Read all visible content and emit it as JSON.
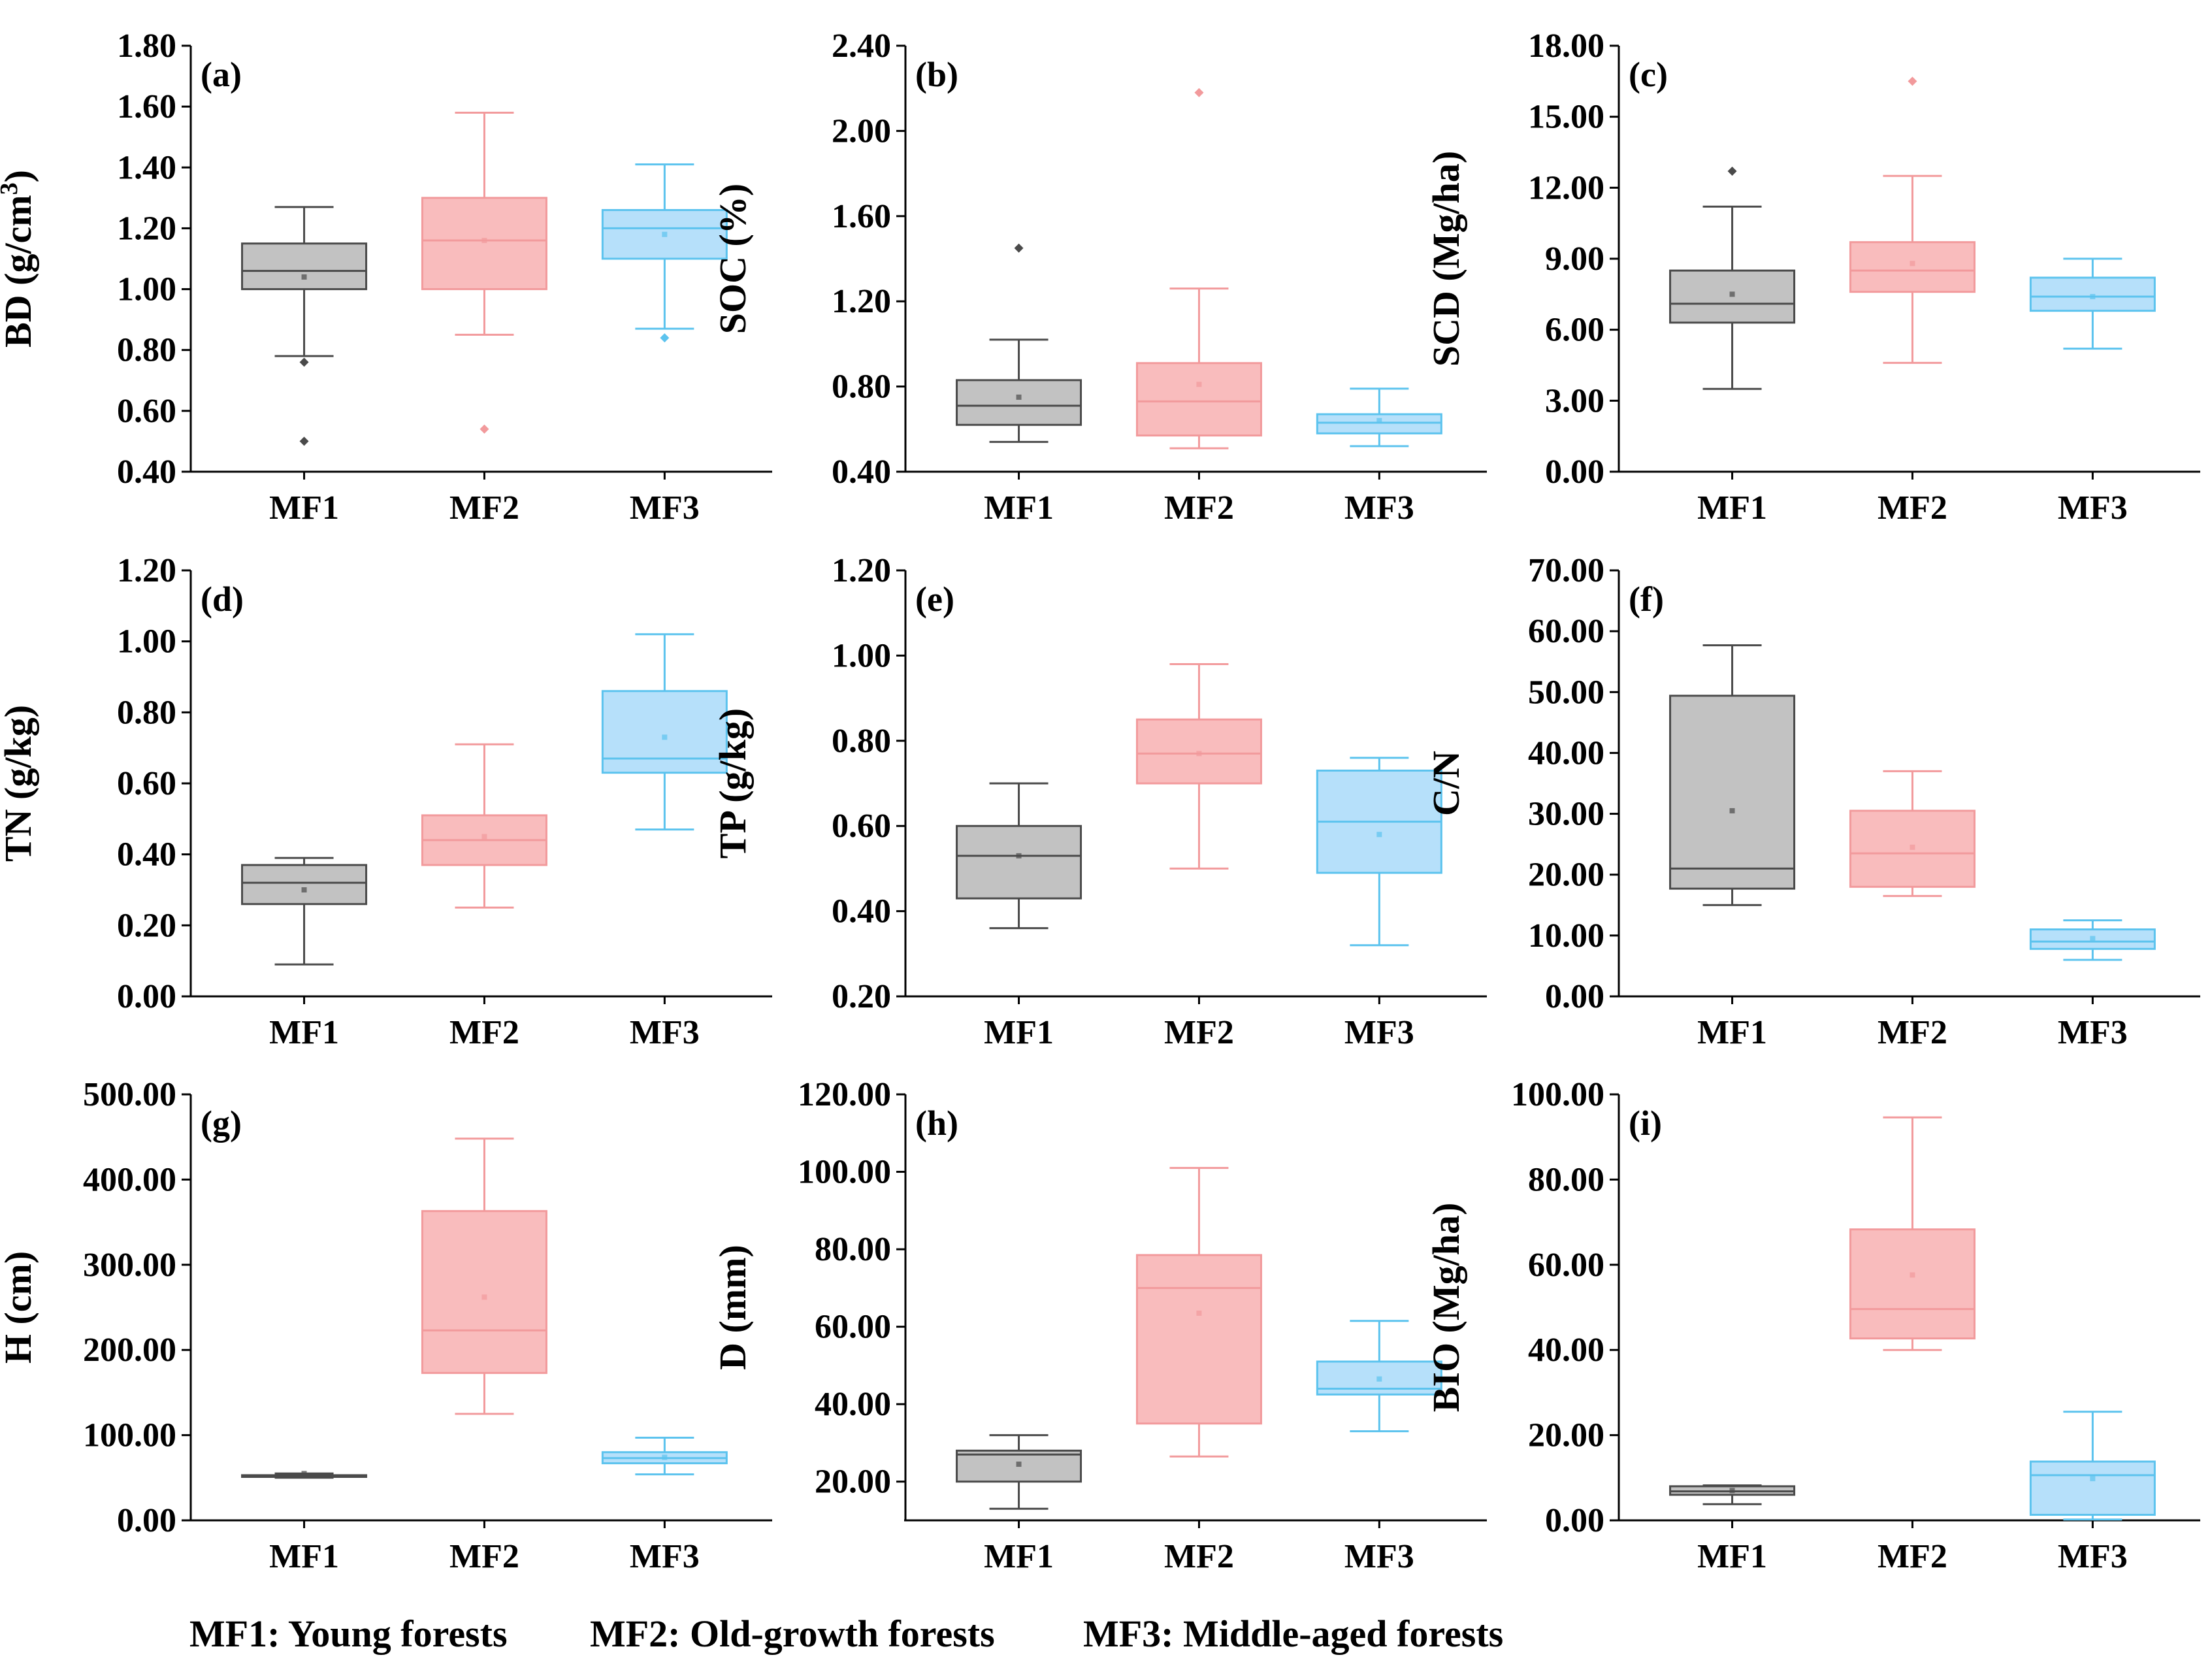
{
  "colors": {
    "MF1": {
      "fill": "#c2c2c2",
      "stroke": "#4a4a4a"
    },
    "MF2": {
      "fill": "#f9bcbd",
      "stroke": "#f29a9c"
    },
    "MF3": {
      "fill": "#b6e0fa",
      "stroke": "#5cc3ee"
    },
    "axis": "#000000"
  },
  "legend": [
    "MF1: Young forests",
    "MF2: Old-growth forests",
    "MF3: Middle-aged forests"
  ],
  "chart_data": [
    {
      "type": "box",
      "panel_label": "(a)",
      "ylabel": "BD (g/cm",
      "ylabel_sup": "3",
      "ylabel_end": ")",
      "ylim": [
        0.4,
        1.8
      ],
      "yticks": [
        "0.40",
        "0.60",
        "0.80",
        "1.00",
        "1.20",
        "1.40",
        "1.60",
        "1.80"
      ],
      "categories": [
        "MF1",
        "MF2",
        "MF3"
      ],
      "boxes": [
        {
          "name": "MF1",
          "min": 0.78,
          "q1": 1.0,
          "median": 1.06,
          "q3": 1.15,
          "max": 1.27,
          "mean": 1.04,
          "outliers": [
            0.76,
            0.5
          ]
        },
        {
          "name": "MF2",
          "min": 0.85,
          "q1": 1.0,
          "median": 1.16,
          "q3": 1.3,
          "max": 1.58,
          "mean": 1.16,
          "outliers": [
            0.54
          ]
        },
        {
          "name": "MF3",
          "min": 0.87,
          "q1": 1.1,
          "median": 1.2,
          "q3": 1.26,
          "max": 1.41,
          "mean": 1.18,
          "outliers": [
            0.84
          ]
        }
      ]
    },
    {
      "type": "box",
      "panel_label": "(b)",
      "ylabel": "SOC (%)",
      "ylabel_sup": "",
      "ylabel_end": "",
      "ylim": [
        0.4,
        2.4
      ],
      "yticks": [
        "0.40",
        "0.80",
        "1.20",
        "1.60",
        "2.00",
        "2.40"
      ],
      "categories": [
        "MF1",
        "MF2",
        "MF3"
      ],
      "boxes": [
        {
          "name": "MF1",
          "min": 0.54,
          "q1": 0.62,
          "median": 0.71,
          "q3": 0.83,
          "max": 1.02,
          "mean": 0.75,
          "outliers": [
            1.45
          ]
        },
        {
          "name": "MF2",
          "min": 0.51,
          "q1": 0.57,
          "median": 0.73,
          "q3": 0.91,
          "max": 1.26,
          "mean": 0.81,
          "outliers": [
            2.18
          ]
        },
        {
          "name": "MF3",
          "min": 0.52,
          "q1": 0.58,
          "median": 0.63,
          "q3": 0.67,
          "max": 0.79,
          "mean": 0.64,
          "outliers": []
        }
      ]
    },
    {
      "type": "box",
      "panel_label": "(c)",
      "ylabel": "SCD (Mg/ha)",
      "ylabel_sup": "",
      "ylabel_end": "",
      "ylim": [
        0,
        18
      ],
      "yticks": [
        "0.00",
        "3.00",
        "6.00",
        "9.00",
        "12.00",
        "15.00",
        "18.00"
      ],
      "categories": [
        "MF1",
        "MF2",
        "MF3"
      ],
      "boxes": [
        {
          "name": "MF1",
          "min": 3.5,
          "q1": 6.3,
          "median": 7.1,
          "q3": 8.5,
          "max": 11.2,
          "mean": 7.5,
          "outliers": [
            12.7
          ]
        },
        {
          "name": "MF2",
          "min": 4.6,
          "q1": 7.6,
          "median": 8.5,
          "q3": 9.7,
          "max": 12.5,
          "mean": 8.8,
          "outliers": [
            16.5
          ]
        },
        {
          "name": "MF3",
          "min": 5.2,
          "q1": 6.8,
          "median": 7.4,
          "q3": 8.2,
          "max": 9.0,
          "mean": 7.4,
          "outliers": []
        }
      ]
    },
    {
      "type": "box",
      "panel_label": "(d)",
      "ylabel": "TN (g/kg)",
      "ylabel_sup": "",
      "ylabel_end": "",
      "ylim": [
        0,
        1.2
      ],
      "yticks": [
        "0.00",
        "0.20",
        "0.40",
        "0.60",
        "0.80",
        "1.00",
        "1.20"
      ],
      "categories": [
        "MF1",
        "MF2",
        "MF3"
      ],
      "boxes": [
        {
          "name": "MF1",
          "min": 0.09,
          "q1": 0.26,
          "median": 0.32,
          "q3": 0.37,
          "max": 0.39,
          "mean": 0.3,
          "outliers": []
        },
        {
          "name": "MF2",
          "min": 0.25,
          "q1": 0.37,
          "median": 0.44,
          "q3": 0.51,
          "max": 0.71,
          "mean": 0.45,
          "outliers": []
        },
        {
          "name": "MF3",
          "min": 0.47,
          "q1": 0.63,
          "median": 0.67,
          "q3": 0.86,
          "max": 1.02,
          "mean": 0.73,
          "outliers": []
        }
      ]
    },
    {
      "type": "box",
      "panel_label": "(e)",
      "ylabel": "TP (g/kg)",
      "ylabel_sup": "",
      "ylabel_end": "",
      "ylim": [
        0.2,
        1.2
      ],
      "yticks": [
        "0.20",
        "0.40",
        "0.60",
        "0.80",
        "1.00",
        "1.20"
      ],
      "categories": [
        "MF1",
        "MF2",
        "MF3"
      ],
      "boxes": [
        {
          "name": "MF1",
          "min": 0.36,
          "q1": 0.43,
          "median": 0.53,
          "q3": 0.6,
          "max": 0.7,
          "mean": 0.53,
          "outliers": []
        },
        {
          "name": "MF2",
          "min": 0.5,
          "q1": 0.7,
          "median": 0.77,
          "q3": 0.85,
          "max": 0.98,
          "mean": 0.77,
          "outliers": []
        },
        {
          "name": "MF3",
          "min": 0.32,
          "q1": 0.49,
          "median": 0.61,
          "q3": 0.73,
          "max": 0.76,
          "mean": 0.58,
          "outliers": []
        }
      ]
    },
    {
      "type": "box",
      "panel_label": "(f)",
      "ylabel": "C/N",
      "ylabel_sup": "",
      "ylabel_end": "",
      "ylim": [
        0,
        70
      ],
      "yticks": [
        "0.00",
        "10.00",
        "20.00",
        "30.00",
        "40.00",
        "50.00",
        "60.00",
        "70.00"
      ],
      "categories": [
        "MF1",
        "MF2",
        "MF3"
      ],
      "boxes": [
        {
          "name": "MF1",
          "min": 15.0,
          "q1": 17.7,
          "median": 21.0,
          "q3": 49.4,
          "max": 57.7,
          "mean": 30.5,
          "outliers": []
        },
        {
          "name": "MF2",
          "min": 16.5,
          "q1": 18.0,
          "median": 23.5,
          "q3": 30.5,
          "max": 37.0,
          "mean": 24.5,
          "outliers": []
        },
        {
          "name": "MF3",
          "min": 6.0,
          "q1": 7.8,
          "median": 9.0,
          "q3": 11.0,
          "max": 12.5,
          "mean": 9.5,
          "outliers": []
        }
      ]
    },
    {
      "type": "box",
      "panel_label": "(g)",
      "ylabel": "H (cm)",
      "ylabel_sup": "",
      "ylabel_end": "",
      "ylim": [
        0,
        500
      ],
      "yticks": [
        "0.00",
        "100.00",
        "200.00",
        "300.00",
        "400.00",
        "500.00"
      ],
      "categories": [
        "MF1",
        "MF2",
        "MF3"
      ],
      "boxes": [
        {
          "name": "MF1",
          "min": 50,
          "q1": 51,
          "median": 52,
          "q3": 53,
          "max": 55,
          "mean": 55,
          "outliers": []
        },
        {
          "name": "MF2",
          "min": 125,
          "q1": 173,
          "median": 223,
          "q3": 363,
          "max": 448,
          "mean": 262,
          "outliers": []
        },
        {
          "name": "MF3",
          "min": 54,
          "q1": 67,
          "median": 73,
          "q3": 80,
          "max": 97,
          "mean": 74,
          "outliers": []
        }
      ]
    },
    {
      "type": "box",
      "panel_label": "(h)",
      "ylabel": "D (mm)",
      "ylabel_sup": "",
      "ylabel_end": "",
      "ylim": [
        10,
        120
      ],
      "yticks": [
        "20.00",
        "40.00",
        "60.00",
        "80.00",
        "100.00",
        "120.00"
      ],
      "categories": [
        "MF1",
        "MF2",
        "MF3"
      ],
      "boxes": [
        {
          "name": "MF1",
          "min": 13,
          "q1": 20,
          "median": 27,
          "q3": 28,
          "max": 32,
          "mean": 24.5,
          "outliers": []
        },
        {
          "name": "MF2",
          "min": 26.5,
          "q1": 35,
          "median": 70,
          "q3": 78.5,
          "max": 101,
          "mean": 63.5,
          "outliers": []
        },
        {
          "name": "MF3",
          "min": 33,
          "q1": 42.5,
          "median": 44,
          "q3": 51,
          "max": 61.5,
          "mean": 46.5,
          "outliers": []
        }
      ]
    },
    {
      "type": "box",
      "panel_label": "(i)",
      "ylabel": "BIO (Mg/ha)",
      "ylabel_sup": "",
      "ylabel_end": "",
      "ylim": [
        0,
        100
      ],
      "yticks": [
        "0.00",
        "20.00",
        "40.00",
        "60.00",
        "80.00",
        "100.00"
      ],
      "categories": [
        "MF1",
        "MF2",
        "MF3"
      ],
      "boxes": [
        {
          "name": "MF1",
          "min": 3.8,
          "q1": 6.0,
          "median": 6.8,
          "q3": 8.0,
          "max": 8.2,
          "mean": 7.0,
          "outliers": []
        },
        {
          "name": "MF2",
          "min": 40.0,
          "q1": 42.7,
          "median": 49.6,
          "q3": 68.3,
          "max": 94.6,
          "mean": 57.6,
          "outliers": []
        },
        {
          "name": "MF3",
          "min": 0.2,
          "q1": 1.3,
          "median": 10.6,
          "q3": 13.8,
          "max": 25.5,
          "mean": 9.8,
          "outliers": []
        }
      ]
    }
  ]
}
